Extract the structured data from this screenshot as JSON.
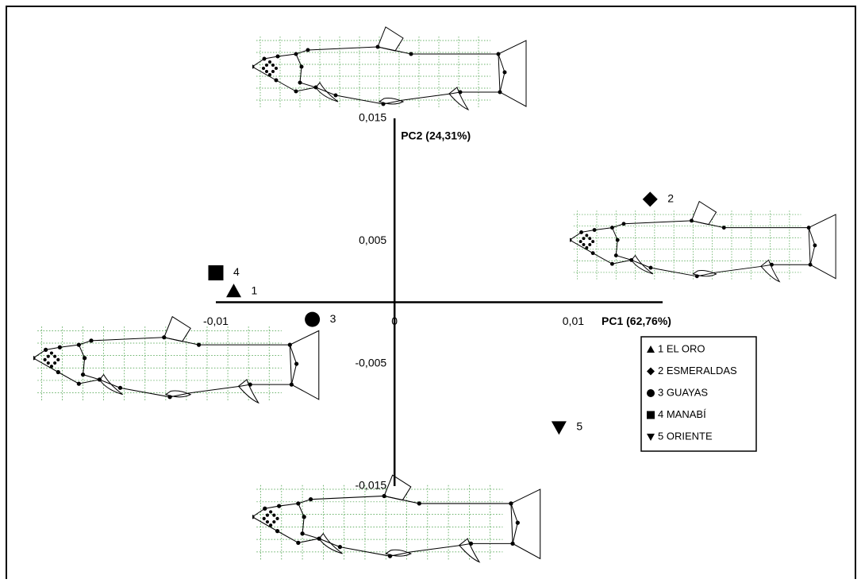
{
  "chart_data": {
    "type": "scatter",
    "x_label": "PC1 (62,76%)",
    "y_label": "PC2 (24,31%)",
    "xlim": [
      -0.01,
      0.015
    ],
    "ylim": [
      -0.015,
      0.015
    ],
    "xticks": [
      {
        "value": -0.01,
        "label": "-0,01"
      },
      0,
      {
        "value": 0.01,
        "label": "0,01"
      }
    ],
    "yticks": [
      {
        "value": 0.015,
        "label": "0,015"
      },
      {
        "value": 0.005,
        "label": "0,005"
      },
      {
        "value": -0.005,
        "label": "-0,005"
      },
      {
        "value": -0.015,
        "label": "-0,015"
      }
    ],
    "grid": false,
    "series": [
      {
        "name": "1 EL ORO",
        "label": "1",
        "marker": "triangle-up",
        "color": "#000000",
        "x": [
          -0.009
        ],
        "values": [
          0.0009
        ]
      },
      {
        "name": "2 ESMERALDAS",
        "label": "2",
        "marker": "diamond",
        "color": "#000000",
        "x": [
          0.0143
        ],
        "values": [
          0.0084
        ]
      },
      {
        "name": "3 GUAYAS",
        "label": "3",
        "marker": "circle",
        "color": "#000000",
        "x": [
          -0.0046
        ],
        "values": [
          -0.0014
        ]
      },
      {
        "name": "4 MANABÍ",
        "label": "4",
        "marker": "square",
        "color": "#000000",
        "x": [
          -0.01
        ],
        "values": [
          0.0024
        ]
      },
      {
        "name": "5 ORIENTE",
        "label": "5",
        "marker": "triangle-down",
        "color": "#000000",
        "x": [
          0.0092
        ],
        "values": [
          -0.0102
        ]
      }
    ]
  }
}
